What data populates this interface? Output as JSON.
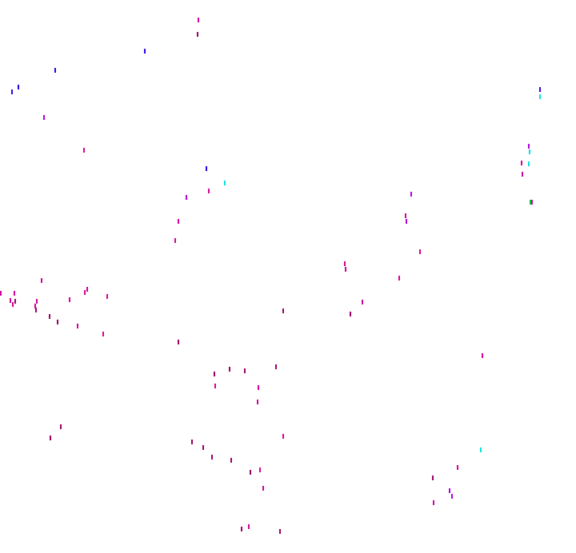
{
  "palette": {
    "background": "#ffffff",
    "magenta": "#d4009a",
    "dark_magenta": "#9a0066",
    "violet": "#b000e0",
    "blue": "#3000e0",
    "cyan": "#00e0e0",
    "green": "#00c040"
  }
}
